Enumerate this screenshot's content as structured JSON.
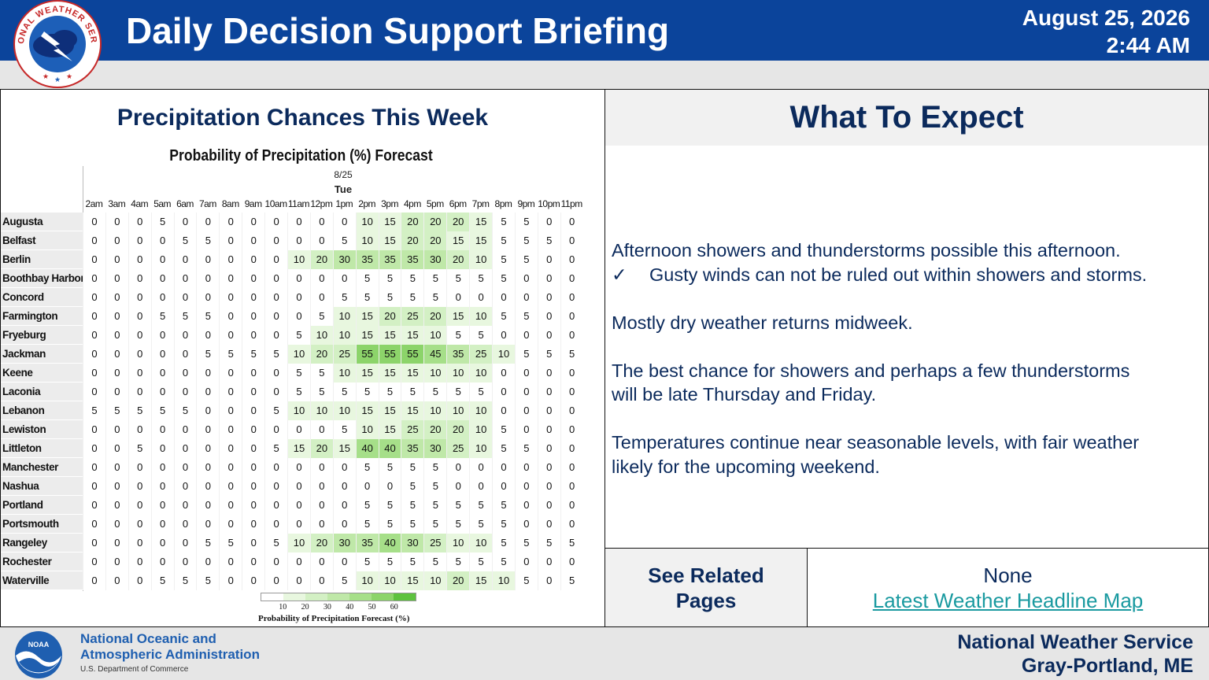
{
  "header": {
    "title": "Daily Decision Support Briefing",
    "date": "August 25, 2026",
    "time": "2:44 AM",
    "logo_text": "NATIONAL WEATHER SERVICE"
  },
  "left_panel": {
    "heading": "Precipitation Chances This Week"
  },
  "right_panel": {
    "heading": "What To Expect",
    "lines": {
      "l1": "Afternoon showers and thunderstorms possible this afternoon.",
      "check": "✓",
      "l2": "Gusty winds can not be ruled out within showers and storms.",
      "l3": "Mostly dry weather returns midweek.",
      "l4a": "The best chance for showers and perhaps a few thunderstorms",
      "l4b": "will be late Thursday and Friday.",
      "l5a": "Temperatures continue near seasonable levels, with fair weather",
      "l5b": "likely for the upcoming weekend."
    }
  },
  "related": {
    "label": "See Related Pages",
    "none": "None",
    "link": "Latest Weather Headline Map"
  },
  "footer": {
    "noaa_line1": "National Oceanic and",
    "noaa_line2": "Atmospheric Administration",
    "noaa_sub": "U.S. Department of Commerce",
    "noaa_logo_text": "NOAA",
    "office_line1": "National Weather Service",
    "office_line2": "Gray-Portland, ME"
  },
  "colors": {
    "header_bg": "#0b449b",
    "text_navy": "#0b2a5c",
    "link": "#1a9aa0",
    "pop_scale": [
      "#ffffff",
      "#e8f7df",
      "#d3f0c4",
      "#bfe8a8",
      "#a6df89",
      "#8cd46a",
      "#5ec23f"
    ]
  },
  "chart_data": {
    "type": "table",
    "title": "Probability of Precipitation (%) Forecast",
    "date": "8/25",
    "day": "Tue",
    "hours": [
      "2am",
      "3am",
      "4am",
      "5am",
      "6am",
      "7am",
      "8am",
      "9am",
      "10am",
      "11am",
      "12pm",
      "1pm",
      "2pm",
      "3pm",
      "4pm",
      "5pm",
      "6pm",
      "7pm",
      "8pm",
      "9pm",
      "10pm",
      "11pm"
    ],
    "rows": [
      {
        "name": "Augusta",
        "values": [
          0,
          0,
          0,
          5,
          0,
          0,
          0,
          0,
          0,
          0,
          0,
          0,
          10,
          15,
          20,
          20,
          20,
          15,
          5,
          5,
          0,
          0
        ]
      },
      {
        "name": "Belfast",
        "values": [
          0,
          0,
          0,
          0,
          5,
          5,
          0,
          0,
          0,
          0,
          0,
          5,
          10,
          15,
          20,
          20,
          15,
          15,
          5,
          5,
          5,
          0
        ]
      },
      {
        "name": "Berlin",
        "values": [
          0,
          0,
          0,
          0,
          0,
          0,
          0,
          0,
          0,
          10,
          20,
          30,
          35,
          35,
          35,
          30,
          20,
          10,
          5,
          5,
          0,
          0
        ]
      },
      {
        "name": "Boothbay Harbor",
        "values": [
          0,
          0,
          0,
          0,
          0,
          0,
          0,
          0,
          0,
          0,
          0,
          0,
          5,
          5,
          5,
          5,
          5,
          5,
          5,
          0,
          0,
          0
        ]
      },
      {
        "name": "Concord",
        "values": [
          0,
          0,
          0,
          0,
          0,
          0,
          0,
          0,
          0,
          0,
          0,
          5,
          5,
          5,
          5,
          5,
          0,
          0,
          0,
          0,
          0,
          0
        ]
      },
      {
        "name": "Farmington",
        "values": [
          0,
          0,
          0,
          5,
          5,
          5,
          0,
          0,
          0,
          0,
          5,
          10,
          15,
          20,
          25,
          20,
          15,
          10,
          5,
          5,
          0,
          0
        ]
      },
      {
        "name": "Fryeburg",
        "values": [
          0,
          0,
          0,
          0,
          0,
          0,
          0,
          0,
          0,
          5,
          10,
          10,
          15,
          15,
          15,
          10,
          5,
          5,
          0,
          0,
          0,
          0
        ]
      },
      {
        "name": "Jackman",
        "values": [
          0,
          0,
          0,
          0,
          0,
          5,
          5,
          5,
          5,
          10,
          20,
          25,
          55,
          55,
          55,
          45,
          35,
          25,
          10,
          5,
          5,
          5
        ]
      },
      {
        "name": "Keene",
        "values": [
          0,
          0,
          0,
          0,
          0,
          0,
          0,
          0,
          0,
          5,
          5,
          10,
          15,
          15,
          15,
          10,
          10,
          10,
          0,
          0,
          0,
          0
        ]
      },
      {
        "name": "Laconia",
        "values": [
          0,
          0,
          0,
          0,
          0,
          0,
          0,
          0,
          0,
          5,
          5,
          5,
          5,
          5,
          5,
          5,
          5,
          5,
          0,
          0,
          0,
          0
        ]
      },
      {
        "name": "Lebanon",
        "values": [
          5,
          5,
          5,
          5,
          5,
          0,
          0,
          0,
          5,
          10,
          10,
          10,
          15,
          15,
          15,
          10,
          10,
          10,
          0,
          0,
          0,
          0
        ]
      },
      {
        "name": "Lewiston",
        "values": [
          0,
          0,
          0,
          0,
          0,
          0,
          0,
          0,
          0,
          0,
          0,
          5,
          10,
          15,
          25,
          20,
          20,
          10,
          5,
          0,
          0,
          0
        ]
      },
      {
        "name": "Littleton",
        "values": [
          0,
          0,
          5,
          0,
          0,
          0,
          0,
          0,
          5,
          15,
          20,
          15,
          40,
          40,
          35,
          30,
          25,
          10,
          5,
          5,
          0,
          0
        ]
      },
      {
        "name": "Manchester",
        "values": [
          0,
          0,
          0,
          0,
          0,
          0,
          0,
          0,
          0,
          0,
          0,
          0,
          5,
          5,
          5,
          5,
          0,
          0,
          0,
          0,
          0,
          0
        ]
      },
      {
        "name": "Nashua",
        "values": [
          0,
          0,
          0,
          0,
          0,
          0,
          0,
          0,
          0,
          0,
          0,
          0,
          0,
          0,
          5,
          5,
          0,
          0,
          0,
          0,
          0,
          0
        ]
      },
      {
        "name": "Portland",
        "values": [
          0,
          0,
          0,
          0,
          0,
          0,
          0,
          0,
          0,
          0,
          0,
          0,
          5,
          5,
          5,
          5,
          5,
          5,
          5,
          0,
          0,
          0
        ]
      },
      {
        "name": "Portsmouth",
        "values": [
          0,
          0,
          0,
          0,
          0,
          0,
          0,
          0,
          0,
          0,
          0,
          0,
          5,
          5,
          5,
          5,
          5,
          5,
          5,
          0,
          0,
          0
        ]
      },
      {
        "name": "Rangeley",
        "values": [
          0,
          0,
          0,
          0,
          0,
          5,
          5,
          0,
          5,
          10,
          20,
          30,
          35,
          40,
          30,
          25,
          10,
          10,
          5,
          5,
          5,
          5
        ]
      },
      {
        "name": "Rochester",
        "values": [
          0,
          0,
          0,
          0,
          0,
          0,
          0,
          0,
          0,
          0,
          0,
          0,
          5,
          5,
          5,
          5,
          5,
          5,
          5,
          0,
          0,
          0
        ]
      },
      {
        "name": "Waterville",
        "values": [
          0,
          0,
          0,
          5,
          5,
          5,
          0,
          0,
          0,
          0,
          0,
          5,
          10,
          10,
          15,
          10,
          20,
          15,
          10,
          5,
          0,
          5
        ]
      }
    ],
    "legend": {
      "ticks": [
        "10",
        "20",
        "30",
        "40",
        "50",
        "60"
      ],
      "caption": "Probability of Precipitation Forecast (%)"
    }
  }
}
